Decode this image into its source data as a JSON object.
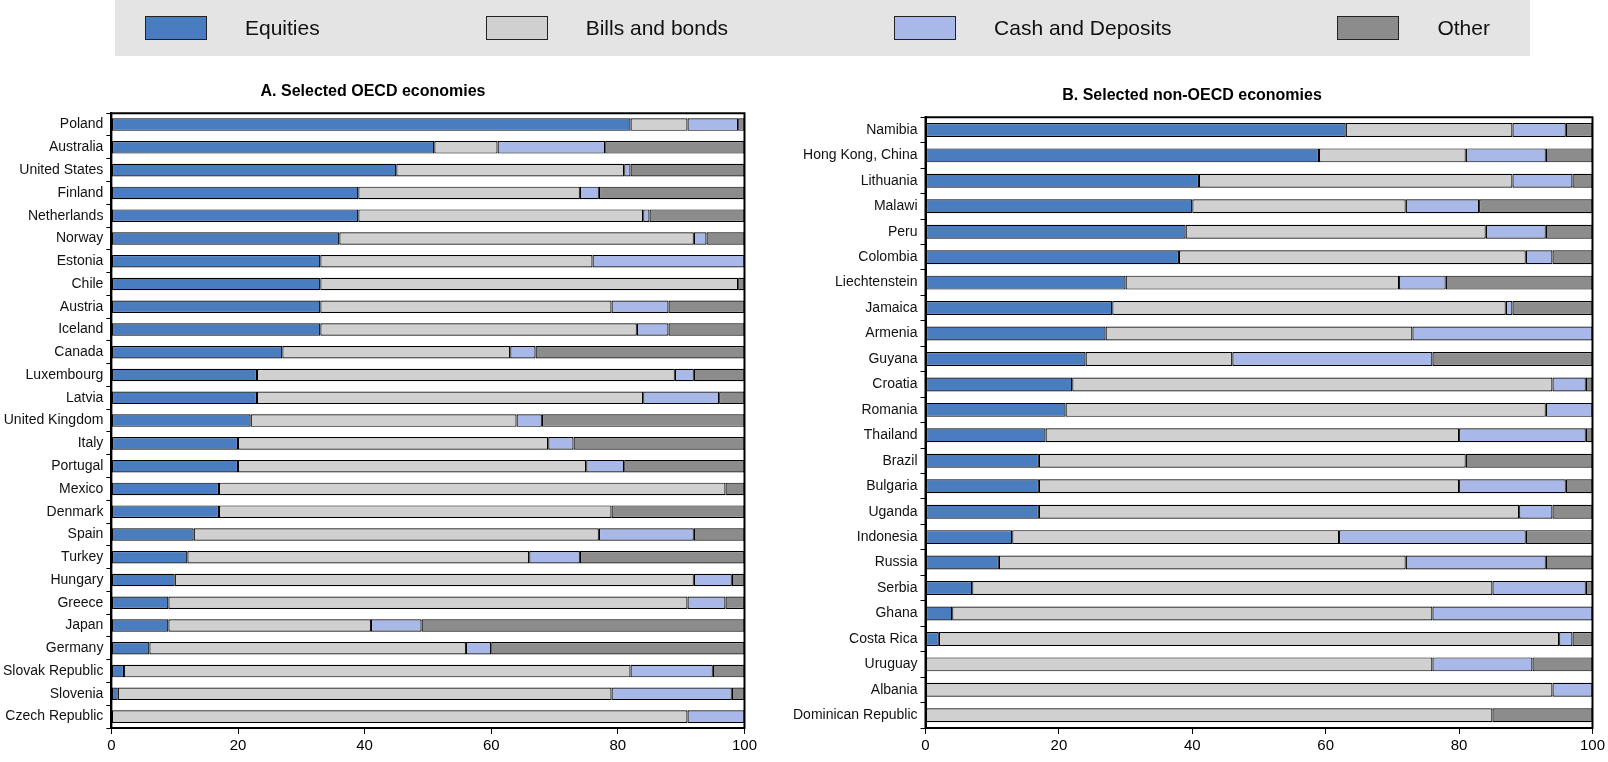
{
  "chart_data": [
    {
      "type": "bar",
      "orientation": "horizontal",
      "stacked": true,
      "title": "A. Selected OECD economies",
      "legend": "top",
      "grid": false,
      "categories": [
        "Poland",
        "Australia",
        "United States",
        "Finland",
        "Netherlands",
        "Norway",
        "Estonia",
        "Chile",
        "Austria",
        "Iceland",
        "Canada",
        "Luxembourg",
        "Latvia",
        "United Kingdom",
        "Italy",
        "Portugal",
        "Mexico",
        "Denmark",
        "Spain",
        "Turkey",
        "Hungary",
        "Greece",
        "Japan",
        "Germany",
        "Slovak Republic",
        "Slovenia",
        "Czech Republic"
      ],
      "xlim": [
        0,
        100
      ],
      "xticks": [
        0,
        20,
        40,
        60,
        80,
        100
      ],
      "series": [
        {
          "name": "Equities",
          "color": "#4a7cc0",
          "values": [
            82,
            51,
            45,
            39,
            39,
            36,
            33,
            33,
            33,
            33,
            27,
            23,
            23,
            22,
            20,
            20,
            17,
            17,
            13,
            12,
            10,
            9,
            9,
            6,
            2,
            1,
            0
          ]
        },
        {
          "name": "Bills and bonds",
          "color": "#d0d0d0",
          "values": [
            9,
            10,
            36,
            35,
            45,
            56,
            43,
            66,
            46,
            50,
            36,
            66,
            61,
            42,
            49,
            55,
            80,
            62,
            64,
            54,
            82,
            82,
            32,
            50,
            80,
            78,
            91
          ]
        },
        {
          "name": "Cash and Deposits",
          "color": "#a8b8e8",
          "values": [
            8,
            17,
            1,
            3,
            1,
            2,
            24,
            0,
            9,
            5,
            4,
            3,
            12,
            4,
            4,
            6,
            0,
            0,
            15,
            8,
            6,
            6,
            8,
            4,
            13,
            19,
            9
          ]
        },
        {
          "name": "Other",
          "color": "#8c8c8c",
          "values": [
            1,
            22,
            18,
            23,
            15,
            6,
            0,
            1,
            12,
            12,
            33,
            8,
            4,
            32,
            27,
            19,
            3,
            21,
            8,
            26,
            2,
            3,
            51,
            40,
            5,
            2,
            0
          ]
        }
      ]
    },
    {
      "type": "bar",
      "orientation": "horizontal",
      "stacked": true,
      "title": "B. Selected non-OECD economies",
      "grid": false,
      "categories": [
        "Namibia",
        "Hong Kong, China",
        "Lithuania",
        "Malawi",
        "Peru",
        "Colombia",
        "Liechtenstein",
        "Jamaica",
        "Armenia",
        "Guyana",
        "Croatia",
        "Romania",
        "Thailand",
        "Brazil",
        "Bulgaria",
        "Uganda",
        "Indonesia",
        "Russia",
        "Serbia",
        "Ghana",
        "Costa Rica",
        "Uruguay",
        "Albania",
        "Dominican Republic"
      ],
      "xlim": [
        0,
        100
      ],
      "xticks": [
        0,
        20,
        40,
        60,
        80,
        100
      ],
      "series": [
        {
          "color": "#4a7cc0",
          "values": [
            63,
            59,
            41,
            40,
            39,
            38,
            30,
            28,
            27,
            24,
            22,
            21,
            18,
            17,
            17,
            17,
            13,
            11,
            7,
            4,
            2,
            0,
            0,
            0
          ]
        },
        {
          "color": "#d0d0d0",
          "values": [
            25,
            22,
            47,
            32,
            45,
            52,
            41,
            59,
            46,
            22,
            72,
            72,
            62,
            64,
            63,
            72,
            49,
            61,
            78,
            72,
            93,
            76,
            94,
            85
          ]
        },
        {
          "color": "#a8b8e8",
          "values": [
            8,
            12,
            9,
            11,
            9,
            4,
            7,
            1,
            27,
            30,
            5,
            7,
            19,
            0,
            16,
            5,
            28,
            21,
            14,
            24,
            2,
            15,
            6,
            0
          ]
        },
        {
          "color": "#8c8c8c",
          "values": [
            4,
            7,
            3,
            17,
            7,
            6,
            22,
            12,
            0,
            24,
            1,
            0,
            1,
            19,
            4,
            6,
            10,
            7,
            1,
            0,
            3,
            9,
            0,
            15
          ]
        }
      ]
    }
  ]
}
